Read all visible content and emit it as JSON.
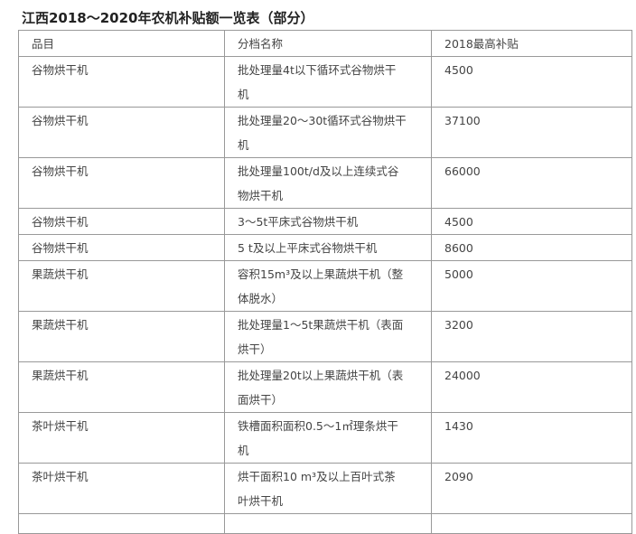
{
  "title": "江西2018～2020年农机补贴额一览表（部分）",
  "table": {
    "headers": [
      "品目",
      "分档名称",
      "2018最高补贴"
    ],
    "rows": [
      {
        "item": "谷物烘干机",
        "desc_lines": [
          "批处理量4t以下循环式谷物烘干",
          "机"
        ],
        "subsidy": "4500"
      },
      {
        "item": "谷物烘干机",
        "desc_lines": [
          "批处理量20～30t循环式谷物烘干",
          "机"
        ],
        "subsidy": "37100"
      },
      {
        "item": "谷物烘干机",
        "desc_lines": [
          "批处理量100t/d及以上连续式谷",
          "物烘干机"
        ],
        "subsidy": "66000"
      },
      {
        "item": "谷物烘干机",
        "desc_lines": [
          "3～5t平床式谷物烘干机"
        ],
        "subsidy": "4500"
      },
      {
        "item": "谷物烘干机",
        "desc_lines": [
          "5 t及以上平床式谷物烘干机"
        ],
        "subsidy": "8600"
      },
      {
        "item": "果蔬烘干机",
        "desc_lines": [
          "容积15m³及以上果蔬烘干机（整",
          "体脱水）"
        ],
        "subsidy": "5000"
      },
      {
        "item": "果蔬烘干机",
        "desc_lines": [
          "批处理量1～5t果蔬烘干机（表面",
          "烘干）"
        ],
        "subsidy": "3200"
      },
      {
        "item": "果蔬烘干机",
        "desc_lines": [
          "批处理量20t以上果蔬烘干机（表",
          "面烘干）"
        ],
        "subsidy": "24000"
      },
      {
        "item": "茶叶烘干机",
        "desc_lines": [
          "铁槽面积面积0.5～1㎡理条烘干",
          "机"
        ],
        "subsidy": "1430"
      },
      {
        "item": "茶叶烘干机",
        "desc_lines": [
          "烘干面积10 m³及以上百叶式茶",
          "叶烘干机"
        ],
        "subsidy": "2090"
      }
    ]
  }
}
